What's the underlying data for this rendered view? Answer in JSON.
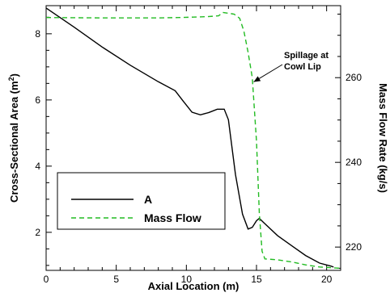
{
  "chart_data": {
    "type": "line",
    "x_axis": {
      "label": "Axial Location (m)",
      "range": [
        0,
        21
      ],
      "ticks": [
        0,
        5,
        10,
        15,
        20
      ]
    },
    "y_axis_left": {
      "label_main": "Cross-Sectional Area (m",
      "label_sup": "2",
      "label_close": ")",
      "range": [
        0.85,
        8.85
      ],
      "ticks": [
        2,
        4,
        6,
        8
      ]
    },
    "y_axis_right": {
      "label": "Mass Flow Rate (kg/s)",
      "range": [
        214.5,
        277
      ],
      "ticks": [
        220,
        240,
        260
      ]
    },
    "series": [
      {
        "name": "A",
        "axis": "left",
        "color": "#000000",
        "style": "solid",
        "points": [
          [
            0,
            8.78
          ],
          [
            2,
            8.2
          ],
          [
            4,
            7.6
          ],
          [
            6,
            7.05
          ],
          [
            8,
            6.55
          ],
          [
            9.2,
            6.28
          ],
          [
            9.8,
            5.95
          ],
          [
            10.4,
            5.63
          ],
          [
            11.0,
            5.55
          ],
          [
            11.6,
            5.62
          ],
          [
            12.2,
            5.72
          ],
          [
            12.7,
            5.72
          ],
          [
            13.0,
            5.4
          ],
          [
            13.5,
            3.75
          ],
          [
            14.0,
            2.55
          ],
          [
            14.4,
            2.1
          ],
          [
            14.7,
            2.15
          ],
          [
            15.0,
            2.35
          ],
          [
            15.2,
            2.42
          ],
          [
            15.5,
            2.3
          ],
          [
            16.5,
            1.9
          ],
          [
            17.5,
            1.6
          ],
          [
            18.5,
            1.3
          ],
          [
            19.5,
            1.07
          ],
          [
            20.3,
            0.98
          ],
          [
            20.5,
            0.95
          ]
        ]
      },
      {
        "name": "Mass Flow",
        "axis": "right",
        "color": "#22bb22",
        "style": "dashed",
        "points": [
          [
            0,
            274.2
          ],
          [
            4,
            274.1
          ],
          [
            8,
            274.1
          ],
          [
            9.5,
            274.2
          ],
          [
            10.5,
            274.3
          ],
          [
            11.5,
            274.4
          ],
          [
            12.3,
            274.6
          ],
          [
            12.6,
            275.4
          ],
          [
            13.0,
            275.2
          ],
          [
            13.4,
            275.0
          ],
          [
            13.8,
            274.0
          ],
          [
            14.1,
            271.0
          ],
          [
            14.4,
            266.0
          ],
          [
            14.7,
            260.0
          ],
          [
            15.0,
            245.0
          ],
          [
            15.2,
            228.0
          ],
          [
            15.4,
            219.0
          ],
          [
            15.6,
            217.2
          ],
          [
            16.5,
            217.0
          ],
          [
            17.5,
            216.5
          ],
          [
            18.5,
            215.8
          ],
          [
            19.5,
            215.3
          ],
          [
            20.5,
            215.1
          ],
          [
            21,
            215.0
          ]
        ]
      }
    ],
    "legend": {
      "position": "lower-left",
      "entries": [
        "A",
        "Mass Flow"
      ]
    },
    "annotation": {
      "lines": [
        "Spillage at",
        "Cowl Lip"
      ],
      "arrow_target": [
        14.8,
        259
      ]
    },
    "grid": false
  }
}
